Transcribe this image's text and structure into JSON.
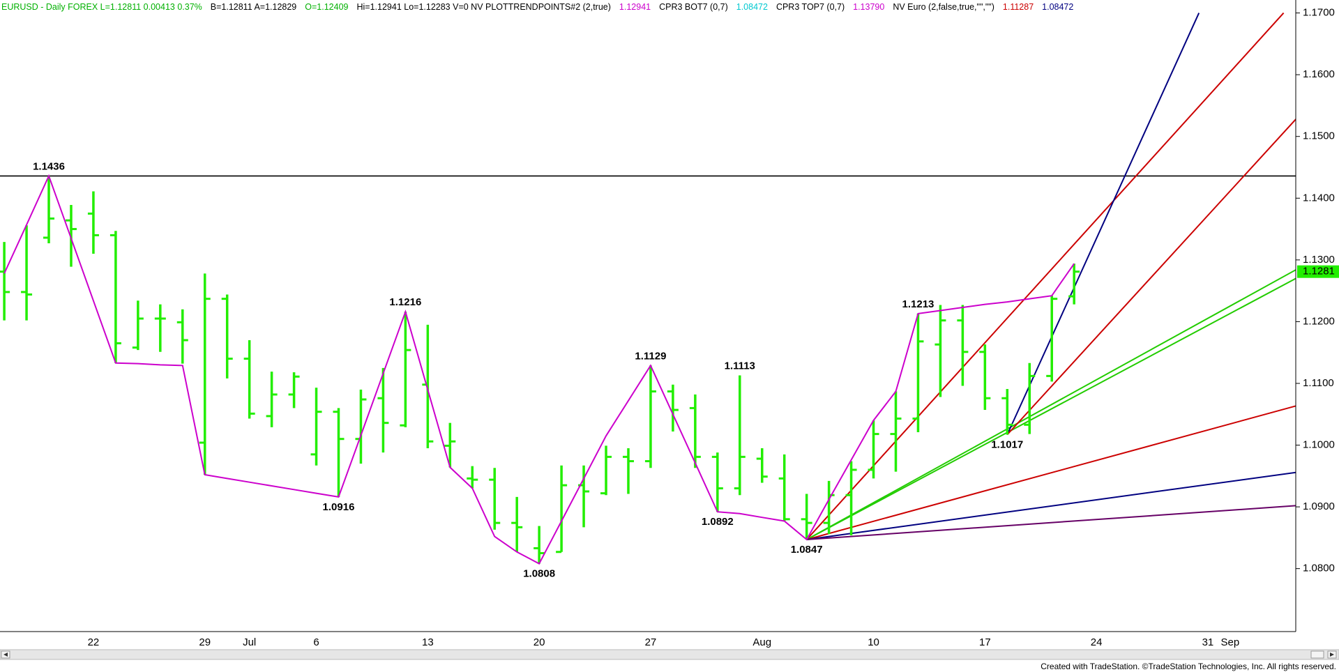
{
  "chart_data": {
    "type": "ohlc",
    "header": [
      {
        "text": "EURUSD - Daily  FOREX  L=1.12811  0.00413  0.37%",
        "color": "#00b000"
      },
      {
        "text": "B=1.12811  A=1.12829",
        "color": "#000000"
      },
      {
        "text": "O=1.12409",
        "color": "#00b000"
      },
      {
        "text": "Hi=1.12941  Lo=1.12283  V=0  NV  PLOTTRENDPOINTS#2 (2,true)",
        "color": "#000000"
      },
      {
        "text": "1.12941",
        "color": "#cc00cc"
      },
      {
        "text": "CPR3 BOT7 (0,7)",
        "color": "#000000"
      },
      {
        "text": "1.08472",
        "color": "#00c8d0"
      },
      {
        "text": "CPR3 TOP7 (0,7)",
        "color": "#000000"
      },
      {
        "text": "1.13790",
        "color": "#cc00cc"
      },
      {
        "text": "NV Euro (2,false,true,\"\",\"\")",
        "color": "#000000"
      },
      {
        "text": "1.11287",
        "color": "#cc0000"
      },
      {
        "text": "1.08472",
        "color": "#000080"
      }
    ],
    "footer": "Created with TradeStation. ©TradeStation Technologies, Inc. All rights reserved.",
    "categories": [
      null,
      null,
      null,
      null,
      "22",
      null,
      null,
      null,
      null,
      "29",
      null,
      "Jul",
      null,
      null,
      "6",
      null,
      null,
      null,
      null,
      "13",
      null,
      null,
      null,
      null,
      "20",
      null,
      null,
      null,
      null,
      "27",
      null,
      null,
      null,
      null,
      "Aug",
      null,
      null,
      null,
      null,
      "10",
      null,
      null,
      null,
      null,
      "17",
      null,
      null,
      null,
      null,
      "24",
      null,
      null,
      null,
      null,
      "31",
      "Sep",
      null,
      null,
      null
    ],
    "open": [
      1.1281,
      1.1248,
      1.1336,
      1.1364,
      1.1375,
      1.134,
      1.1158,
      1.1205,
      1.1199,
      1.1004,
      1.1237,
      1.114,
      1.1047,
      1.1082,
      1.0985,
      1.1054,
      1.101,
      1.1076,
      1.1032,
      1.1098,
      1.0999,
      1.0946,
      1.0944,
      1.0874,
      1.0833,
      1.0827,
      1.0935,
      1.0922,
      1.0981,
      1.0974,
      1.1087,
      1.106,
      1.0981,
      1.093,
      1.0978,
      1.0946,
      1.088,
      1.0874,
      1.0919,
      1.096,
      1.1018,
      1.1043,
      1.1163,
      1.1202,
      1.1151,
      1.1076,
      1.1033,
      1.1112,
      1.1241,
      null,
      null,
      null,
      null,
      null,
      null,
      null,
      null,
      null,
      null
    ],
    "high": [
      1.1329,
      1.1356,
      1.1436,
      1.1389,
      1.1411,
      1.1347,
      1.1234,
      1.1228,
      1.122,
      1.1278,
      1.1244,
      1.117,
      1.1119,
      1.1118,
      1.1093,
      1.106,
      1.109,
      1.1125,
      1.1216,
      1.1195,
      1.1036,
      1.0966,
      1.0963,
      1.0916,
      1.0869,
      1.0967,
      1.0967,
      1.0999,
      1.0995,
      1.1129,
      1.1098,
      1.1082,
      1.0988,
      1.1113,
      1.0995,
      1.0985,
      1.0921,
      1.0942,
      1.0974,
      1.104,
      1.1087,
      1.1213,
      1.1227,
      1.1227,
      1.1163,
      1.1091,
      1.1133,
      1.1242,
      1.1294,
      null,
      null,
      null,
      null,
      null,
      null,
      null,
      null,
      null,
      null
    ],
    "low": [
      1.1202,
      1.1202,
      1.1327,
      1.1289,
      1.131,
      1.1133,
      1.1154,
      1.1151,
      1.1132,
      1.0952,
      1.1108,
      1.1043,
      1.1029,
      1.106,
      1.0967,
      1.0916,
      1.097,
      1.0988,
      1.1029,
      1.0995,
      1.0964,
      1.093,
      1.0863,
      1.0827,
      1.0808,
      1.0827,
      1.0867,
      1.0919,
      1.0921,
      1.0963,
      1.1022,
      1.0963,
      1.0892,
      1.0919,
      1.0939,
      1.0877,
      1.0847,
      1.0856,
      1.0854,
      1.0946,
      1.0957,
      1.1021,
      1.1078,
      1.1096,
      1.1057,
      1.1017,
      1.1018,
      1.1103,
      1.1228,
      null,
      null,
      null,
      null,
      null,
      null,
      null,
      null,
      null,
      null
    ],
    "close": [
      1.1248,
      1.1244,
      1.1367,
      1.135,
      1.134,
      1.1165,
      1.1205,
      1.1205,
      1.117,
      1.1237,
      1.114,
      1.1051,
      1.1082,
      1.1111,
      1.1054,
      1.101,
      1.1074,
      1.1036,
      1.1154,
      1.1006,
      1.1006,
      1.0944,
      1.0874,
      1.0867,
      1.0825,
      1.0935,
      1.0925,
      1.0981,
      1.0974,
      1.1087,
      1.1057,
      1.0981,
      1.093,
      1.0981,
      1.0949,
      1.088,
      1.0874,
      1.0919,
      1.096,
      1.1018,
      1.1043,
      1.1168,
      1.1202,
      1.1151,
      1.1076,
      1.1033,
      1.1112,
      1.1237,
      1.1281,
      null,
      null,
      null,
      null,
      null,
      null,
      null,
      null,
      null,
      null
    ],
    "bar_color": "#22ee00",
    "swing": {
      "color": "#cc00cc",
      "values": [
        1.1278,
        1.1357,
        1.1436,
        1.1335,
        1.1234,
        1.1133,
        1.1132,
        1.113,
        1.1129,
        1.0952,
        1.0946,
        1.094,
        1.0934,
        1.0928,
        1.0922,
        1.0916,
        1.1016,
        1.1116,
        1.1216,
        1.109,
        1.0964,
        1.093,
        1.0852,
        1.0827,
        1.0808,
        1.0877,
        1.0946,
        1.1015,
        1.1072,
        1.1129,
        1.105,
        1.0971,
        1.0892,
        1.0889,
        1.0883,
        1.0877,
        1.0847,
        1.0912,
        1.0976,
        1.104,
        1.1087,
        1.1213,
        1.1218,
        1.1223,
        1.1228,
        1.1232,
        1.1237,
        1.1242,
        1.1294,
        null,
        null,
        null,
        null,
        null,
        null,
        null,
        null,
        null,
        null
      ]
    },
    "swing_points": [
      {
        "at": 2,
        "value": 1.1436,
        "side": "above"
      },
      {
        "at": 15,
        "value": 1.0916,
        "side": "below"
      },
      {
        "at": 18,
        "value": 1.1216,
        "side": "above"
      },
      {
        "at": 24,
        "value": 1.0808,
        "side": "below"
      },
      {
        "at": 29,
        "value": 1.1129,
        "side": "above"
      },
      {
        "at": 32,
        "value": 1.0892,
        "side": "below"
      },
      {
        "at": 33,
        "value": 1.1113,
        "side": "above"
      },
      {
        "at": 36,
        "value": 1.0847,
        "side": "below"
      },
      {
        "at": 41,
        "value": 1.1213,
        "side": "above"
      },
      {
        "at": 45,
        "value": 1.1017,
        "side": "below"
      }
    ],
    "hline": {
      "value": 1.1436,
      "color": "#000000"
    },
    "trend_lines": [
      {
        "color": "#cc0000",
        "x": [
          36,
          57.4
        ],
        "values": [
          1.0847,
          1.17
        ]
      },
      {
        "color": "#22cc00",
        "x": [
          36,
          58
        ],
        "values": [
          1.0847,
          1.1285
        ]
      },
      {
        "color": "#22cc00",
        "x": [
          36,
          58
        ],
        "values": [
          1.0847,
          1.1271
        ]
      },
      {
        "color": "#cc0000",
        "x": [
          36,
          58
        ],
        "values": [
          1.0847,
          1.1064
        ]
      },
      {
        "color": "#000080",
        "x": [
          36,
          58
        ],
        "values": [
          1.0847,
          1.0956
        ]
      },
      {
        "color": "#660066",
        "x": [
          36,
          58
        ],
        "values": [
          1.0847,
          1.0902
        ]
      },
      {
        "color": "#000080",
        "x": [
          45,
          53.6
        ],
        "values": [
          1.1017,
          1.17
        ]
      },
      {
        "color": "#cc0000",
        "x": [
          45,
          58
        ],
        "values": [
          1.1017,
          1.153
        ]
      }
    ],
    "ylim": [
      1.0698,
      1.1721
    ],
    "yticks": [
      {
        "value": 1.08,
        "label": "1.0800"
      },
      {
        "value": 1.09,
        "label": "1.0900"
      },
      {
        "value": 1.1,
        "label": "1.1000"
      },
      {
        "value": 1.11,
        "label": "1.1100"
      },
      {
        "value": 1.12,
        "label": "1.1200"
      },
      {
        "value": 1.13,
        "label": "1.1300"
      },
      {
        "value": 1.14,
        "label": "1.1400"
      },
      {
        "value": 1.15,
        "label": "1.1500"
      },
      {
        "value": 1.16,
        "label": "1.1600"
      },
      {
        "value": 1.17,
        "label": "1.1700"
      }
    ],
    "last_price": 1.1281,
    "last_price_color": "#22ee00"
  }
}
